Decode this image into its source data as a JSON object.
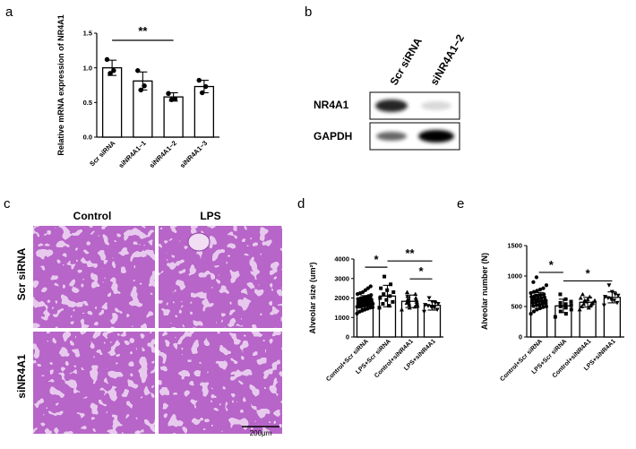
{
  "panel_labels": {
    "a": "a",
    "b": "b",
    "c": "c",
    "d": "d",
    "e": "e"
  },
  "chart_data": [
    {
      "panel": "a",
      "type": "bar",
      "categories": [
        "Scr siRNA",
        "siNR4A1−1",
        "siNR4A1−2",
        "siNR4A1−3"
      ],
      "values": [
        1.0,
        0.81,
        0.58,
        0.73
      ],
      "errors": [
        0.11,
        0.13,
        0.06,
        0.09
      ],
      "points": [
        [
          1.12,
          0.96,
          0.92
        ],
        [
          0.96,
          0.74,
          0.68
        ],
        [
          0.63,
          0.55,
          0.54
        ],
        [
          0.82,
          0.73,
          0.64
        ]
      ],
      "point_marker": "circle",
      "ylabel": "Relative mRNA expression of NR4A1",
      "ylim": [
        0,
        1.5
      ],
      "yticks": [
        0.0,
        0.5,
        1.0,
        1.5
      ],
      "ytick_labels": [
        "0.0",
        "0.5",
        "1.0",
        "1.5"
      ],
      "significance": [
        {
          "from": 0,
          "to": 2,
          "label": "**"
        }
      ]
    },
    {
      "panel": "d",
      "type": "bar",
      "categories": [
        "Control+Scr siRNA",
        "LPS+Scr siRNA",
        "Control+siNR4A1",
        "LPS+siNR4A1"
      ],
      "values": [
        1790,
        2100,
        1830,
        1620
      ],
      "errors": [
        330,
        550,
        320,
        240
      ],
      "point_markers": [
        "circle",
        "square",
        "triangle-up",
        "triangle-down"
      ],
      "points": [
        [
          1200,
          1300,
          1350,
          1400,
          1450,
          1500,
          1520,
          1550,
          1580,
          1600,
          1620,
          1650,
          1680,
          1700,
          1720,
          1740,
          1760,
          1780,
          1800,
          1820,
          1840,
          1860,
          1880,
          1900,
          1920,
          1950,
          1980,
          2000,
          2050,
          2100,
          2150,
          2200,
          2250,
          2300,
          2400,
          2500,
          2600,
          1550,
          1650,
          1750,
          1850,
          1950,
          2050,
          1700,
          1800,
          1900
        ],
        [
          1500,
          1600,
          1700,
          1800,
          1900,
          2000,
          2100,
          2200,
          2300,
          2400,
          2500,
          2700,
          3100
        ],
        [
          1400,
          1500,
          1600,
          1650,
          1700,
          1750,
          1800,
          1850,
          1900,
          1950,
          2000,
          2100,
          2200,
          2300,
          1550,
          1750
        ],
        [
          1300,
          1400,
          1500,
          1550,
          1600,
          1650,
          1700,
          1750,
          1800,
          2000
        ]
      ],
      "ylabel": "Alveolar size (um²)",
      "ylim": [
        0,
        4000
      ],
      "yticks": [
        0,
        1000,
        2000,
        3000,
        4000
      ],
      "ytick_labels": [
        "0",
        "1000",
        "2000",
        "3000",
        "4000"
      ],
      "significance": [
        {
          "from": 0,
          "to": 1,
          "label": "*",
          "level": 3580
        },
        {
          "from": 1,
          "to": 3,
          "label": "**",
          "level": 3900
        },
        {
          "from": 2,
          "to": 3,
          "label": "*",
          "level": 2980
        }
      ]
    },
    {
      "panel": "e",
      "type": "bar",
      "categories": [
        "Control+Scr siRNA",
        "LPS+Scr siRNA",
        "Control+siNR4A1",
        "LPS+siNR4A1"
      ],
      "values": [
        600,
        510,
        570,
        650
      ],
      "errors": [
        130,
        110,
        80,
        90
      ],
      "point_markers": [
        "circle",
        "square",
        "triangle-up",
        "triangle-down"
      ],
      "points": [
        [
          380,
          420,
          450,
          470,
          490,
          500,
          510,
          520,
          530,
          540,
          550,
          560,
          570,
          580,
          590,
          600,
          610,
          620,
          630,
          640,
          650,
          660,
          670,
          680,
          690,
          700,
          720,
          740,
          760,
          780,
          800,
          850,
          900,
          980,
          520,
          560,
          600,
          640,
          680
        ],
        [
          330,
          380,
          420,
          450,
          480,
          500,
          520,
          540,
          560,
          580,
          620,
          700
        ],
        [
          450,
          480,
          500,
          520,
          540,
          560,
          580,
          600,
          620,
          640,
          660,
          700,
          540,
          600
        ],
        [
          520,
          560,
          600,
          620,
          640,
          660,
          680,
          700,
          740,
          850
        ]
      ],
      "ylabel": "Alveolar number (N)",
      "ylim": [
        0,
        1500
      ],
      "yticks": [
        0,
        500,
        1000,
        1500
      ],
      "ytick_labels": [
        "0",
        "500",
        "1000",
        "1500"
      ],
      "significance": [
        {
          "from": 0,
          "to": 1,
          "label": "*",
          "level": 1060
        },
        {
          "from": 1,
          "to": 3,
          "label": "*",
          "level": 920
        }
      ]
    }
  ],
  "blot": {
    "lane_labels": [
      "Scr siRNA",
      "siNR4A1−2"
    ],
    "rows": [
      {
        "label": "NR4A1",
        "band_intensity": [
          0.85,
          0.15
        ]
      },
      {
        "label": "GAPDH",
        "band_intensity": [
          0.6,
          1.0
        ]
      }
    ]
  },
  "histology": {
    "column_labels": [
      "Control",
      "LPS"
    ],
    "row_labels": [
      "Scr siRNA",
      "siNR4A1"
    ],
    "scale_bar_label": "200μm",
    "stain_colors": {
      "background": "#e7c9ee",
      "tissue": "#b765c8",
      "nuclei": "#5a1f7a"
    }
  }
}
